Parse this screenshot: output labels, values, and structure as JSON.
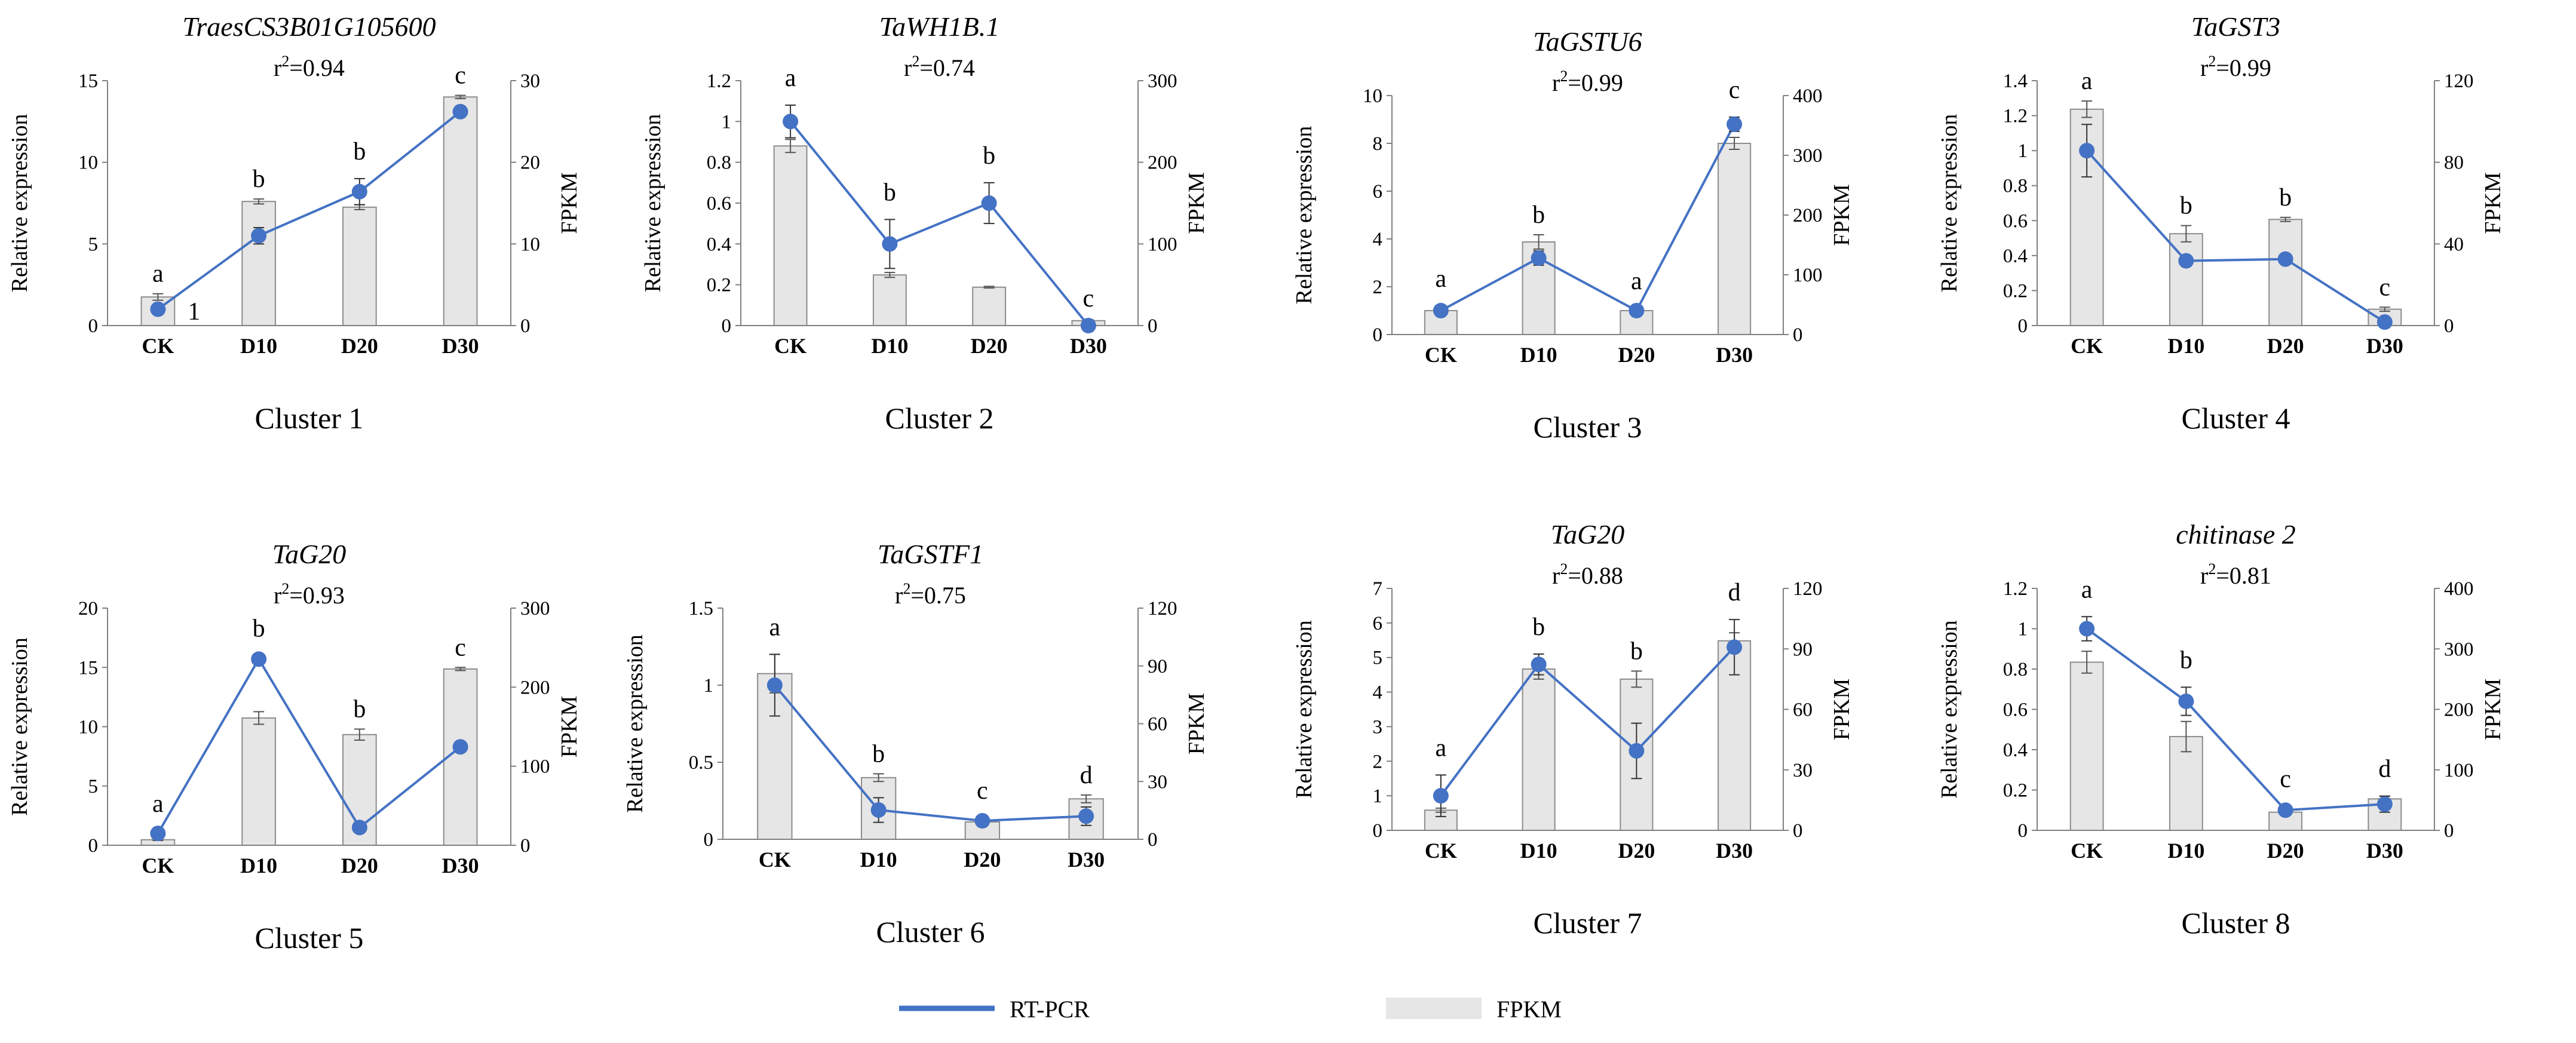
{
  "figure": {
    "legend": [
      {
        "label": "RT-PCR",
        "kind": "line",
        "color": "#4472c4"
      },
      {
        "label": "FPKM",
        "kind": "bar",
        "color": "#e6e6e6"
      }
    ]
  },
  "colors": {
    "line": "#4472c4",
    "bar_fill": "#e6e6e6",
    "bar_stroke": "#8c8c8c",
    "axis": "#808080"
  },
  "chart_data": [
    {
      "type": "bar+line",
      "cluster": "Cluster 1",
      "title": "TraesCS3B01G105600",
      "r2_base": "r",
      "r2_exp": "2",
      "r2_value": "=0.94",
      "categories": [
        "CK",
        "D10",
        "D20",
        "D30"
      ],
      "ylabel_left": "Relative expression",
      "ylabel_right": "FPKM",
      "ylim_left": [
        0,
        15
      ],
      "yticks_left": [
        0,
        5,
        10,
        15
      ],
      "ylim_right": [
        0,
        30
      ],
      "yticks_right": [
        0,
        10,
        20,
        30
      ],
      "series": [
        {
          "name": "FPKM",
          "kind": "bar",
          "axis": "right",
          "values": [
            3.5,
            15.2,
            14.5,
            28.0
          ],
          "errors": [
            0.4,
            0.3,
            0.3,
            0.2
          ]
        },
        {
          "name": "RT-PCR",
          "kind": "line",
          "axis": "left",
          "values": [
            1.0,
            5.5,
            8.2,
            13.1
          ],
          "errors": [
            0.2,
            0.5,
            0.8,
            0.2
          ]
        }
      ],
      "significance": [
        "a",
        "b",
        "b",
        "c"
      ],
      "annotation": "1"
    },
    {
      "type": "bar+line",
      "cluster": "Cluster 2",
      "title": "TaWH1B.1",
      "r2_base": "r",
      "r2_exp": "2",
      "r2_value": "=0.74",
      "categories": [
        "CK",
        "D10",
        "D20",
        "D30"
      ],
      "ylabel_left": "Relative expression",
      "ylabel_right": "FPKM",
      "ylim_left": [
        0,
        1.2
      ],
      "yticks_left": [
        0,
        0.2,
        0.4,
        0.6,
        0.8,
        1,
        1.2
      ],
      "ylim_right": [
        0,
        300
      ],
      "yticks_right": [
        0,
        100,
        200,
        300
      ],
      "series": [
        {
          "name": "FPKM",
          "kind": "bar",
          "axis": "right",
          "values": [
            220,
            62,
            47,
            6
          ],
          "errors": [
            8,
            3,
            1,
            1
          ]
        },
        {
          "name": "RT-PCR",
          "kind": "line",
          "axis": "left",
          "values": [
            1.0,
            0.4,
            0.6,
            0.0
          ],
          "errors": [
            0.08,
            0.12,
            0.1,
            0.0
          ]
        }
      ],
      "significance": [
        "a",
        "b",
        "b",
        "c"
      ]
    },
    {
      "type": "bar+line",
      "cluster": "Cluster 3",
      "title": "TaGSTU6",
      "r2_base": "r",
      "r2_exp": "2",
      "r2_value": "=0.99",
      "categories": [
        "CK",
        "D10",
        "D20",
        "D30"
      ],
      "ylabel_left": "Relative expression",
      "ylabel_right": "FPKM",
      "ylim_left": [
        0,
        10
      ],
      "yticks_left": [
        0,
        2,
        4,
        6,
        8,
        10
      ],
      "ylim_right": [
        0,
        400
      ],
      "yticks_right": [
        0,
        100,
        200,
        300,
        400
      ],
      "series": [
        {
          "name": "FPKM",
          "kind": "bar",
          "axis": "right",
          "values": [
            40,
            155,
            40,
            320
          ],
          "errors": [
            4,
            12,
            4,
            10
          ]
        },
        {
          "name": "RT-PCR",
          "kind": "line",
          "axis": "left",
          "values": [
            1.0,
            3.2,
            1.0,
            8.8
          ],
          "errors": [
            0.2,
            0.3,
            0.1,
            0.3
          ]
        }
      ],
      "significance": [
        "a",
        "b",
        "a",
        "c"
      ]
    },
    {
      "type": "bar+line",
      "cluster": "Cluster 4",
      "title": "TaGST3",
      "r2_base": "r",
      "r2_exp": "2",
      "r2_value": "=0.99",
      "categories": [
        "CK",
        "D10",
        "D20",
        "D30"
      ],
      "ylabel_left": "Relative expression",
      "ylabel_right": "FPKM",
      "ylim_left": [
        0,
        1.4
      ],
      "yticks_left": [
        0,
        0.2,
        0.4,
        0.6,
        0.8,
        1,
        1.2,
        1.4
      ],
      "ylim_right": [
        0,
        120
      ],
      "yticks_right": [
        0,
        40,
        80,
        120
      ],
      "series": [
        {
          "name": "FPKM",
          "kind": "bar",
          "axis": "right",
          "values": [
            106,
            45,
            52,
            8
          ],
          "errors": [
            4,
            4,
            1,
            1
          ]
        },
        {
          "name": "RT-PCR",
          "kind": "line",
          "axis": "left",
          "values": [
            1.0,
            0.37,
            0.38,
            0.02
          ],
          "errors": [
            0.15,
            0.01,
            0.01,
            0.01
          ]
        }
      ],
      "significance": [
        "a",
        "b",
        "b",
        "c"
      ]
    },
    {
      "type": "bar+line",
      "cluster": "Cluster 5",
      "title": "TaG20",
      "r2_base": "r",
      "r2_exp": "2",
      "r2_value": "=0.93",
      "categories": [
        "CK",
        "D10",
        "D20",
        "D30"
      ],
      "ylabel_left": "Relative expression",
      "ylabel_right": "FPKM",
      "ylim_left": [
        0,
        20
      ],
      "yticks_left": [
        0,
        5,
        10,
        15,
        20
      ],
      "ylim_right": [
        0,
        300
      ],
      "yticks_right": [
        0,
        100,
        200,
        300
      ],
      "series": [
        {
          "name": "FPKM",
          "kind": "bar",
          "axis": "right",
          "values": [
            7,
            161,
            140,
            223
          ],
          "errors": [
            1,
            8,
            7,
            2
          ]
        },
        {
          "name": "RT-PCR",
          "kind": "line",
          "axis": "left",
          "values": [
            1.0,
            15.7,
            1.5,
            8.3
          ],
          "errors": [
            0.2,
            0.3,
            0.2,
            0.2
          ]
        }
      ],
      "significance": [
        "a",
        "b",
        "b",
        "c"
      ]
    },
    {
      "type": "bar+line",
      "cluster": "Cluster 6",
      "title": "TaGSTF1",
      "r2_base": "r",
      "r2_exp": "2",
      "r2_value": "=0.75",
      "categories": [
        "CK",
        "D10",
        "D20",
        "D30"
      ],
      "ylabel_left": "Relative expression",
      "ylabel_right": "FPKM",
      "ylim_left": [
        0,
        1.5
      ],
      "yticks_left": [
        0,
        0.5,
        1,
        1.5
      ],
      "ylim_right": [
        0,
        120
      ],
      "yticks_right": [
        0,
        30,
        60,
        90,
        120
      ],
      "series": [
        {
          "name": "FPKM",
          "kind": "bar",
          "axis": "right",
          "values": [
            86,
            32,
            9,
            21
          ],
          "errors": [
            10,
            2,
            1,
            2
          ]
        },
        {
          "name": "RT-PCR",
          "kind": "line",
          "axis": "left",
          "values": [
            1.0,
            0.19,
            0.12,
            0.15
          ],
          "errors": [
            0.2,
            0.08,
            0.02,
            0.06
          ]
        }
      ],
      "significance": [
        "a",
        "b",
        "c",
        "d"
      ]
    },
    {
      "type": "bar+line",
      "cluster": "Cluster 7",
      "title": "TaG20",
      "r2_base": "r",
      "r2_exp": "2",
      "r2_value": "=0.88",
      "categories": [
        "CK",
        "D10",
        "D20",
        "D30"
      ],
      "ylabel_left": "Relative expression",
      "ylabel_right": "FPKM",
      "ylim_left": [
        0,
        7
      ],
      "yticks_left": [
        0,
        1,
        2,
        3,
        4,
        5,
        6,
        7
      ],
      "ylim_right": [
        0,
        120
      ],
      "yticks_right": [
        0,
        30,
        60,
        90,
        120
      ],
      "series": [
        {
          "name": "FPKM",
          "kind": "bar",
          "axis": "right",
          "values": [
            10,
            80,
            75,
            94
          ],
          "errors": [
            1,
            5,
            4,
            4
          ]
        },
        {
          "name": "RT-PCR",
          "kind": "line",
          "axis": "left",
          "values": [
            1.0,
            4.8,
            2.3,
            5.3
          ],
          "errors": [
            0.6,
            0.3,
            0.8,
            0.8
          ]
        }
      ],
      "significance": [
        "a",
        "b",
        "b",
        "d"
      ]
    },
    {
      "type": "bar+line",
      "cluster": "Cluster 8",
      "title": "chitinase 2",
      "r2_base": "r",
      "r2_exp": "2",
      "r2_value": "=0.81",
      "categories": [
        "CK",
        "D10",
        "D20",
        "D30"
      ],
      "ylabel_left": "Relative expression",
      "ylabel_right": "FPKM",
      "ylim_left": [
        0,
        1.2
      ],
      "yticks_left": [
        0,
        0.2,
        0.4,
        0.6,
        0.8,
        1,
        1.2
      ],
      "ylim_right": [
        0,
        400
      ],
      "yticks_right": [
        0,
        100,
        200,
        300,
        400
      ],
      "series": [
        {
          "name": "FPKM",
          "kind": "bar",
          "axis": "right",
          "values": [
            278,
            155,
            30,
            52
          ],
          "errors": [
            18,
            25,
            3,
            4
          ]
        },
        {
          "name": "RT-PCR",
          "kind": "line",
          "axis": "left",
          "values": [
            1.0,
            0.64,
            0.1,
            0.13
          ],
          "errors": [
            0.06,
            0.07,
            0.02,
            0.04
          ]
        }
      ],
      "significance": [
        "a",
        "b",
        "c",
        "d"
      ]
    }
  ]
}
